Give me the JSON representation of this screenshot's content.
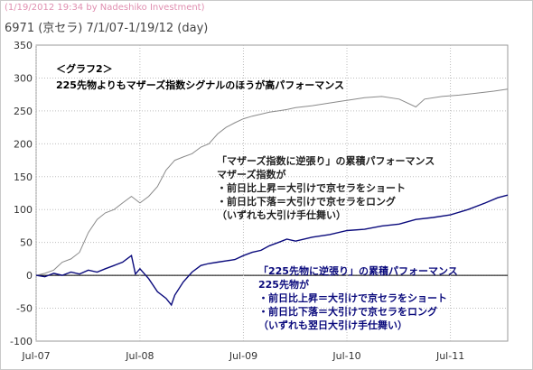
{
  "header": {
    "meta": "(1/19/2012 19:34 by Nadeshiko Investment)",
    "title": "6971 (京セラ) 7/1/07-1/19/12 (day)"
  },
  "colors": {
    "series_gray": "#8a8a8a",
    "series_navy": "#0a0a7c",
    "grid": "#bdbdbd",
    "meta_text": "#e08fb0"
  },
  "chart_data": {
    "type": "line",
    "title": "",
    "xlabel": "",
    "ylabel": "",
    "ylim": [
      -100,
      350
    ],
    "yticks": [
      -100,
      -50,
      0,
      50,
      100,
      150,
      200,
      250,
      300,
      350
    ],
    "x_tick_labels": [
      "Jul-07",
      "Jul-08",
      "Jul-09",
      "Jul-10",
      "Jul-11"
    ],
    "x_tick_dates": [
      "2007-07-01",
      "2008-07-01",
      "2009-07-01",
      "2010-07-01",
      "2011-07-01"
    ],
    "xlim_dates": [
      "2007-07-01",
      "2012-01-19"
    ],
    "grid": true,
    "series": [
      {
        "key": "mothers",
        "color": "#8a8a8a",
        "points": [
          [
            "2007-07-01",
            0
          ],
          [
            "2007-08-01",
            3
          ],
          [
            "2007-09-01",
            8
          ],
          [
            "2007-10-01",
            20
          ],
          [
            "2007-11-01",
            25
          ],
          [
            "2007-12-01",
            35
          ],
          [
            "2008-01-01",
            65
          ],
          [
            "2008-02-01",
            85
          ],
          [
            "2008-03-01",
            95
          ],
          [
            "2008-04-01",
            100
          ],
          [
            "2008-05-01",
            110
          ],
          [
            "2008-06-01",
            120
          ],
          [
            "2008-07-01",
            110
          ],
          [
            "2008-08-01",
            120
          ],
          [
            "2008-09-01",
            135
          ],
          [
            "2008-10-01",
            160
          ],
          [
            "2008-11-01",
            175
          ],
          [
            "2008-12-01",
            180
          ],
          [
            "2009-01-01",
            185
          ],
          [
            "2009-02-01",
            195
          ],
          [
            "2009-03-01",
            200
          ],
          [
            "2009-04-01",
            215
          ],
          [
            "2009-05-01",
            225
          ],
          [
            "2009-06-01",
            232
          ],
          [
            "2009-07-01",
            238
          ],
          [
            "2009-08-01",
            242
          ],
          [
            "2009-09-01",
            245
          ],
          [
            "2009-10-01",
            248
          ],
          [
            "2009-11-01",
            250
          ],
          [
            "2009-12-01",
            252
          ],
          [
            "2010-01-01",
            255
          ],
          [
            "2010-03-01",
            258
          ],
          [
            "2010-05-01",
            262
          ],
          [
            "2010-07-01",
            266
          ],
          [
            "2010-09-01",
            270
          ],
          [
            "2010-11-01",
            272
          ],
          [
            "2011-01-01",
            268
          ],
          [
            "2011-03-01",
            256
          ],
          [
            "2011-04-01",
            268
          ],
          [
            "2011-06-01",
            272
          ],
          [
            "2011-08-01",
            274
          ],
          [
            "2011-10-01",
            277
          ],
          [
            "2011-12-01",
            280
          ],
          [
            "2012-01-19",
            283
          ]
        ]
      },
      {
        "key": "futures",
        "color": "#0a0a7c",
        "points": [
          [
            "2007-07-01",
            0
          ],
          [
            "2007-08-01",
            -2
          ],
          [
            "2007-09-01",
            3
          ],
          [
            "2007-10-01",
            0
          ],
          [
            "2007-11-01",
            5
          ],
          [
            "2007-12-01",
            2
          ],
          [
            "2008-01-01",
            8
          ],
          [
            "2008-02-01",
            5
          ],
          [
            "2008-03-01",
            10
          ],
          [
            "2008-04-01",
            15
          ],
          [
            "2008-05-01",
            20
          ],
          [
            "2008-06-01",
            30
          ],
          [
            "2008-06-15",
            2
          ],
          [
            "2008-07-01",
            10
          ],
          [
            "2008-08-01",
            -5
          ],
          [
            "2008-09-01",
            -25
          ],
          [
            "2008-10-01",
            -35
          ],
          [
            "2008-10-20",
            -45
          ],
          [
            "2008-11-01",
            -30
          ],
          [
            "2008-12-01",
            -10
          ],
          [
            "2009-01-01",
            5
          ],
          [
            "2009-02-01",
            15
          ],
          [
            "2009-03-01",
            18
          ],
          [
            "2009-04-01",
            20
          ],
          [
            "2009-05-01",
            22
          ],
          [
            "2009-06-01",
            24
          ],
          [
            "2009-07-01",
            30
          ],
          [
            "2009-08-01",
            35
          ],
          [
            "2009-09-01",
            38
          ],
          [
            "2009-10-01",
            45
          ],
          [
            "2009-11-01",
            50
          ],
          [
            "2009-12-01",
            55
          ],
          [
            "2010-01-01",
            52
          ],
          [
            "2010-03-01",
            58
          ],
          [
            "2010-05-01",
            62
          ],
          [
            "2010-07-01",
            68
          ],
          [
            "2010-09-01",
            70
          ],
          [
            "2010-11-01",
            75
          ],
          [
            "2011-01-01",
            78
          ],
          [
            "2011-03-01",
            85
          ],
          [
            "2011-05-01",
            88
          ],
          [
            "2011-07-01",
            92
          ],
          [
            "2011-09-01",
            100
          ],
          [
            "2011-11-01",
            110
          ],
          [
            "2011-12-15",
            118
          ],
          [
            "2012-01-19",
            122
          ]
        ]
      }
    ],
    "annotations": {
      "heading": [
        "＜グラフ2＞",
        "225先物よりもマザーズ指数シグナルのほうが高パフォーマンス"
      ],
      "mothers_note": [
        "「マザーズ指数に逆張り」の累積パフォーマンス",
        "マザーズ指数が",
        "・前日比上昇＝大引けで京セラをショート",
        "・前日比下落＝大引けで京セラをロング",
        "（いずれも大引け手仕舞い）"
      ],
      "futures_note": [
        "「225先物に逆張り」の累積パフォーマンス",
        "225先物が",
        "・前日比上昇＝大引けで京セラをショート",
        "・前日比下落＝大引けで京セラをロング",
        "（いずれも翌日大引け手仕舞い）"
      ]
    }
  }
}
